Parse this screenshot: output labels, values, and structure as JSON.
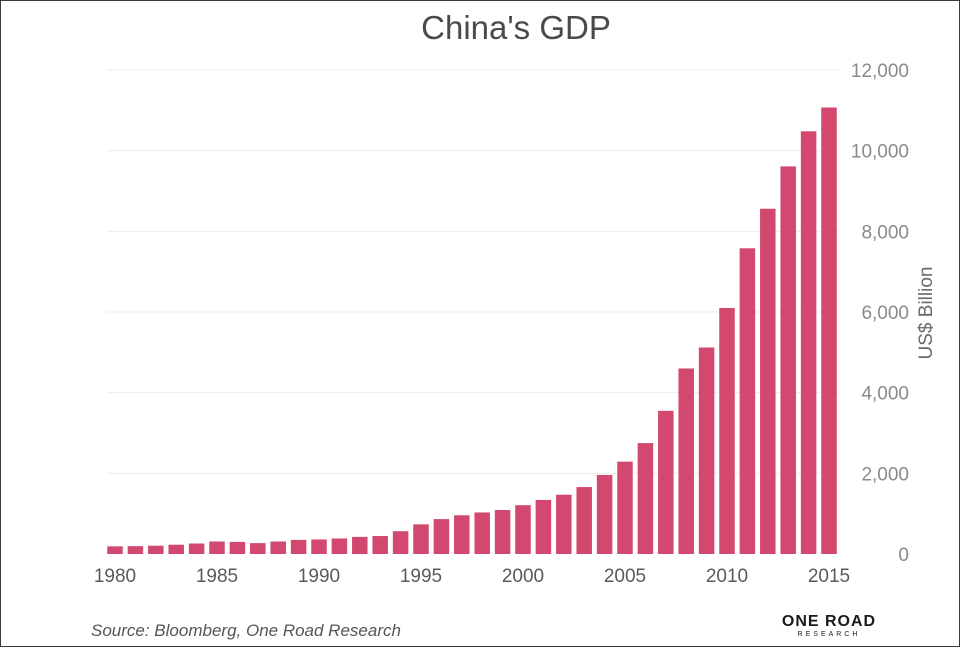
{
  "chart_data": {
    "type": "bar",
    "title": "China's GDP",
    "xlabel": "",
    "ylabel": "US$ Billion",
    "ylim": [
      0,
      12000
    ],
    "y_ticks": [
      "0",
      "2,000",
      "4,000",
      "6,000",
      "8,000",
      "10,000",
      "12,000"
    ],
    "y_tick_values": [
      0,
      2000,
      4000,
      6000,
      8000,
      10000,
      12000
    ],
    "x_ticks": [
      "1980",
      "1985",
      "1990",
      "1995",
      "2000",
      "2005",
      "2010",
      "2015"
    ],
    "x_tick_values": [
      1980,
      1985,
      1990,
      1995,
      2000,
      2005,
      2010,
      2015
    ],
    "grid": true,
    "bar_color": "#d3486f",
    "categories": [
      1980,
      1981,
      1982,
      1983,
      1984,
      1985,
      1986,
      1987,
      1988,
      1989,
      1990,
      1991,
      1992,
      1993,
      1994,
      1995,
      1996,
      1997,
      1998,
      1999,
      2000,
      2001,
      2002,
      2003,
      2004,
      2005,
      2006,
      2007,
      2008,
      2009,
      2010,
      2011,
      2012,
      2013,
      2014,
      2015
    ],
    "values": [
      190,
      195,
      205,
      230,
      260,
      310,
      300,
      270,
      310,
      350,
      360,
      385,
      425,
      445,
      565,
      735,
      865,
      960,
      1030,
      1090,
      1210,
      1340,
      1470,
      1660,
      1960,
      2290,
      2750,
      3550,
      4600,
      5120,
      6100,
      7580,
      8560,
      9610,
      10480,
      11070
    ]
  },
  "footer": {
    "source": "Source: Bloomberg, One Road Research",
    "brand_name": "ONE ROAD",
    "brand_sub": "RESEARCH"
  }
}
